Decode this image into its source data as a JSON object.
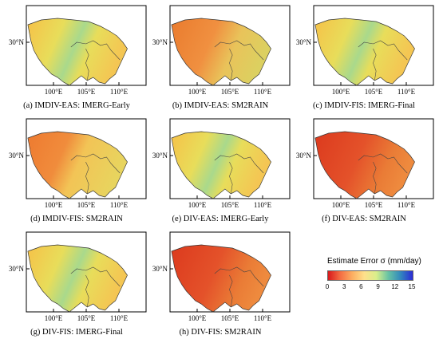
{
  "panels": [
    {
      "caption": "(a) IMDIV-EAS: IMERG-Early",
      "palette": "yellow_blue_center"
    },
    {
      "caption": "(b) IMDIV-EAS: SM2RAIN",
      "palette": "orange"
    },
    {
      "caption": "(c) IMDIV-FIS: IMERG-Final",
      "palette": "yellow_blue_center"
    },
    {
      "caption": "(d) IMDIV-FIS: SM2RAIN",
      "palette": "orange_west"
    },
    {
      "caption": "(e) DIV-EAS: IMERG-Early",
      "palette": "yellow_blue_center"
    },
    {
      "caption": "(f) DIV-EAS: SM2RAIN",
      "palette": "red"
    },
    {
      "caption": "(g) DIV-FIS: IMERG-Final",
      "palette": "yellow_blue_center"
    },
    {
      "caption": "(h) DIV-FIS: SM2RAIN",
      "palette": "red"
    }
  ],
  "axis": {
    "lat_label": "30°N",
    "lon_labels": [
      "100°E",
      "105°E",
      "110°E"
    ]
  },
  "legend": {
    "title": "Estimate Error σ (mm/day)",
    "ticks": [
      "0",
      "3",
      "6",
      "9",
      "12",
      "15"
    ],
    "range": [
      0,
      15
    ],
    "colors": [
      "#d7191c",
      "#f46d43",
      "#fdae61",
      "#fee08b",
      "#d9ef8b",
      "#66c2a5",
      "#3288bd",
      "#2b2bd6"
    ]
  }
}
